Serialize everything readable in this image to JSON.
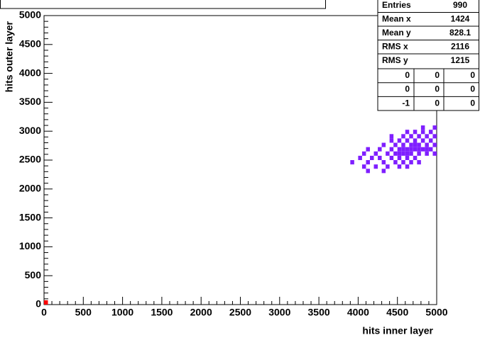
{
  "chart_data": {
    "type": "scatter",
    "xlabel": "hits inner layer",
    "ylabel": "hits outer layer",
    "xlim": [
      0,
      5000
    ],
    "ylim": [
      0,
      5000
    ],
    "xticks": [
      0,
      500,
      1000,
      1500,
      2000,
      2500,
      3000,
      3500,
      4000,
      4500,
      5000
    ],
    "yticks": [
      0,
      500,
      1000,
      1500,
      2000,
      2500,
      3000,
      3500,
      4000,
      4500,
      5000
    ],
    "series": [
      {
        "color": "#7f1fff",
        "x": [
          3900,
          4000,
          4050,
          4050,
          4100,
          4100,
          4150,
          4200,
          4200,
          4250,
          4250,
          4300,
          4300,
          4350,
          4350,
          4400,
          4400,
          4400,
          4450,
          4450,
          4450,
          4500,
          4500,
          4500,
          4500,
          4550,
          4550,
          4550,
          4550,
          4600,
          4600,
          4600,
          4600,
          4650,
          4650,
          4650,
          4650,
          4700,
          4700,
          4700,
          4700,
          4750,
          4750,
          4750,
          4800,
          4800,
          4800,
          4800,
          4850,
          4850,
          4850,
          4900,
          4900,
          4900,
          4950,
          4950,
          4950,
          4950,
          4300,
          4600,
          4100,
          4400,
          4750,
          4500,
          4600,
          4700,
          4550,
          4650,
          4750,
          4850
        ],
        "values": [
          2425,
          2500,
          2350,
          2575,
          2650,
          2425,
          2500,
          2575,
          2350,
          2650,
          2500,
          2425,
          2725,
          2575,
          2350,
          2650,
          2500,
          2800,
          2725,
          2575,
          2425,
          2650,
          2500,
          2800,
          2350,
          2725,
          2575,
          2425,
          2875,
          2650,
          2500,
          2800,
          2950,
          2725,
          2575,
          2425,
          2875,
          2650,
          2800,
          2500,
          2950,
          2725,
          2575,
          2875,
          2650,
          2800,
          2950,
          3025,
          2725,
          2575,
          2875,
          2650,
          2800,
          2950,
          2725,
          2875,
          2575,
          3025,
          2275,
          2350,
          2275,
          2875,
          2425,
          2575,
          2575,
          2725,
          2650,
          2650,
          2650,
          2650
        ]
      },
      {
        "color": "#ff0000",
        "x": [
          0
        ],
        "values": [
          0
        ]
      }
    ],
    "stats": {
      "rows": [
        [
          "Entries",
          "990"
        ],
        [
          "Mean x",
          "1424"
        ],
        [
          "Mean y",
          "828.1"
        ],
        [
          "RMS x",
          "2116"
        ],
        [
          "RMS y",
          "1215"
        ]
      ],
      "grid": [
        [
          "0",
          "0",
          "0"
        ],
        [
          "0",
          "0",
          "0"
        ],
        [
          "-1",
          "0",
          "0"
        ]
      ]
    }
  }
}
